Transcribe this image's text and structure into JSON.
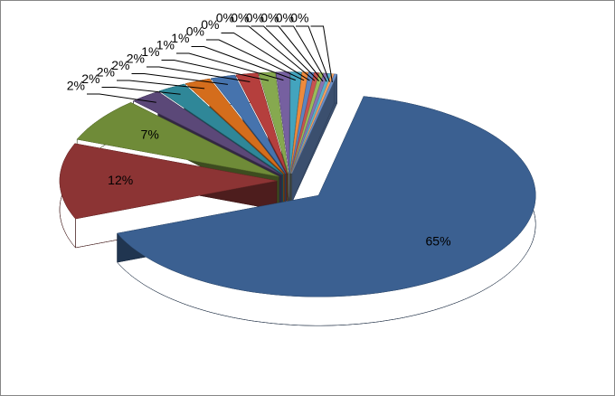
{
  "chart_data": {
    "type": "pie",
    "values": [
      65,
      12,
      7,
      2.3,
      2.1,
      1.9,
      1.8,
      1.6,
      1.2,
      1.0,
      0.8,
      0.45,
      0.4,
      0.35,
      0.3,
      0.3,
      0.25,
      0.2,
      0.2
    ],
    "value_labels": [
      "65%",
      "12%",
      "7%",
      "2%",
      "2%",
      "2%",
      "2%",
      "2%",
      "1%",
      "1%",
      "1%",
      "0%",
      "0%",
      "0%",
      "0%",
      "0%",
      "0%",
      "0%",
      "0%"
    ],
    "colors": [
      "#3b6091",
      "#8c3434",
      "#6f8b38",
      "#5b4878",
      "#2f8798",
      "#d46d1c",
      "#4673ad",
      "#b53f3d",
      "#86a94f",
      "#7660a0",
      "#43a4be",
      "#ee8a3c",
      "#5b85c0",
      "#c85250",
      "#9abc5a",
      "#8a72b0",
      "#58b2cc",
      "#f5a060",
      "#6b90c8"
    ]
  }
}
